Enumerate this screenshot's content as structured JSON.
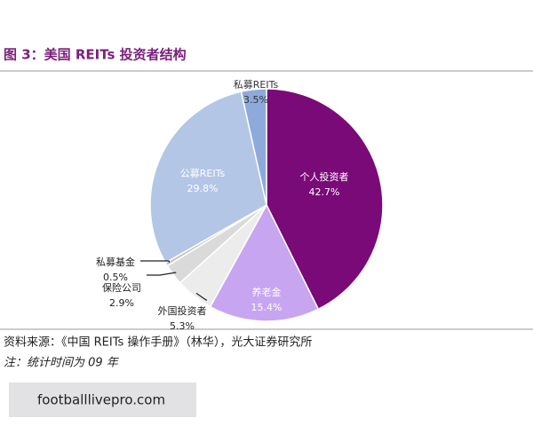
{
  "chart_data": {
    "type": "pie",
    "title": "图 3：美国 REITs 投资者结构",
    "categories": [
      "个人投资者",
      "养老金",
      "外国投资者",
      "保险公司",
      "私募基金",
      "公募REITs",
      "私募REITs"
    ],
    "values": [
      42.7,
      15.4,
      5.3,
      2.9,
      0.5,
      29.8,
      3.5
    ],
    "value_labels": [
      "42.7%",
      "15.4%",
      "5.3%",
      "2.9%",
      "0.5%",
      "29.8%",
      "3.5%"
    ],
    "colors": [
      "#7a0a78",
      "#c7a5f0",
      "#ececec",
      "#dadada",
      "#c4c4c4",
      "#b4c6e6",
      "#8eaadb"
    ],
    "source": "资料来源：《中国 REITs 操作手册》（林华），光大证券研究所",
    "note": "注：统计时间为 09 年"
  },
  "watermark": "footballlivepro.com"
}
